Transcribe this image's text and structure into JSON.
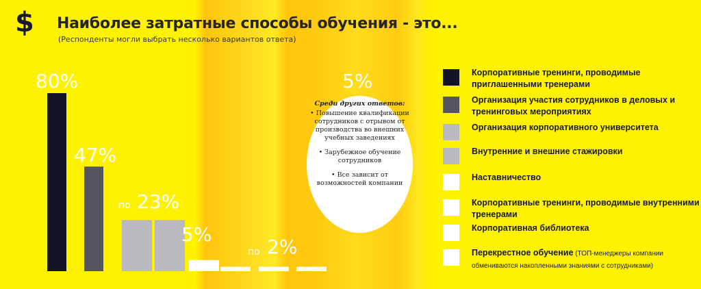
{
  "header": {
    "dollar_symbol": "$",
    "title": "Наиболее затратные способы обучения - это...",
    "subtitle": "(Респонденты могли выбрать несколько вариантов ответа)"
  },
  "chart_data": {
    "type": "bar",
    "title": "Наиболее затратные способы обучения - это...",
    "subtitle": "(Респонденты могли выбрать несколько вариантов ответа)",
    "categories": [
      "Корпоративные тренинги, проводимые приглашенными тренерами",
      "Организация участия сотрудников в деловых и тренинговых мероприятиях",
      "Организация корпоративного университета",
      "Внутренние и внешние стажировки",
      "Наставничество",
      "Корпоративные тренинги, проводимые внутренними тренерами",
      "Корпоративная библиотека",
      "Перекрестное обучение"
    ],
    "values": [
      80,
      47,
      23,
      23,
      5,
      2,
      2,
      2
    ],
    "value_labels": [
      {
        "text": "80%",
        "prefix": ""
      },
      {
        "text": "47%",
        "prefix": ""
      },
      {
        "text": "23%",
        "prefix": "по"
      },
      {
        "text": "5%",
        "prefix": ""
      },
      {
        "text": "2%",
        "prefix": "по"
      },
      {
        "text": "5%",
        "prefix": ""
      }
    ],
    "other_value": 5,
    "colors": [
      "#141428",
      "#55555f",
      "#b9b9bf",
      "#b9b9bf",
      "#ffffff",
      "#ffffff",
      "#ffffff",
      "#ffffff"
    ],
    "ylim": [
      0,
      100
    ],
    "legend_position": "right"
  },
  "other_answers": {
    "heading": "Среди других ответов:",
    "items": [
      "• Повышение квалификации сотрудников с отрывом от производства во внешних учебных заведениях",
      "• Зарубежное обучение сотрудников",
      "• Все зависит от возможностей компании"
    ]
  },
  "legend": [
    {
      "label": "Корпоративные тренинги, проводимые приглашенными тренерами",
      "note": "",
      "color": "#141428"
    },
    {
      "label": "Организация участия сотрудников в деловых и тренинговых мероприятиях",
      "note": "",
      "color": "#55555f"
    },
    {
      "label": "Организация корпоративного университета",
      "note": "",
      "color": "#b9b9bf"
    },
    {
      "label": "Внутренние и внешние стажировки",
      "note": "",
      "color": "#b9b9bf"
    },
    {
      "label": "Наставничество",
      "note": "",
      "color": "#ffffff"
    },
    {
      "label": "Корпоративные тренинги, проводимые внутренними тренерами",
      "note": "",
      "color": "#ffffff"
    },
    {
      "label": "Корпоративная библиотека",
      "note": "",
      "color": "#ffffff"
    },
    {
      "label": "Перекрестное обучение",
      "note": "(ТОП-менеджеры компании обмениваются накопленными знаниями с сотрудниками)",
      "color": "#ffffff"
    }
  ]
}
